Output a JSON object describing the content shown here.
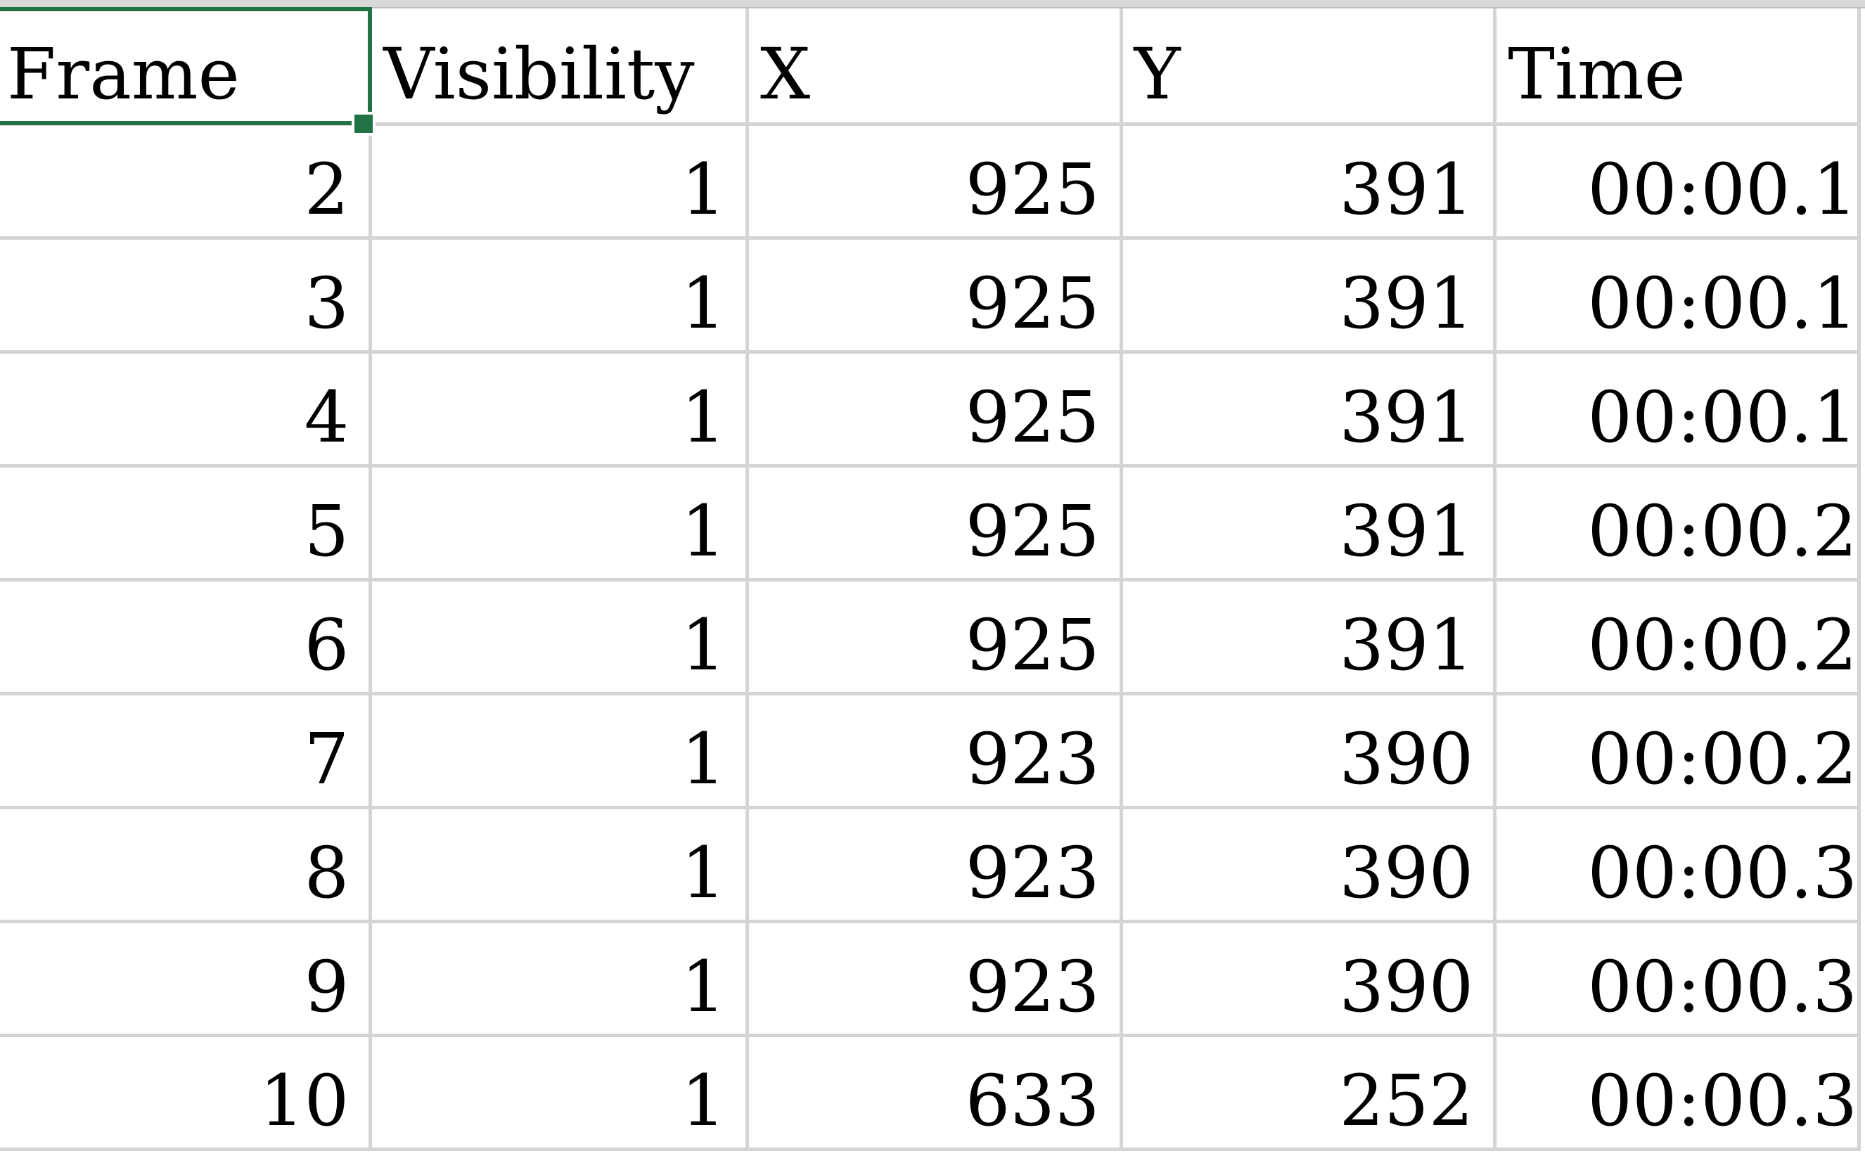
{
  "sheet": {
    "active_cell_value": "Frame",
    "accent_color": "#217346",
    "headers": [
      "Frame",
      "Visibility",
      "X",
      "Y",
      "Time"
    ],
    "rows": [
      [
        "2",
        "1",
        "925",
        "391",
        "00:00.1"
      ],
      [
        "3",
        "1",
        "925",
        "391",
        "00:00.1"
      ],
      [
        "4",
        "1",
        "925",
        "391",
        "00:00.1"
      ],
      [
        "5",
        "1",
        "925",
        "391",
        "00:00.2"
      ],
      [
        "6",
        "1",
        "925",
        "391",
        "00:00.2"
      ],
      [
        "7",
        "1",
        "923",
        "390",
        "00:00.2"
      ],
      [
        "8",
        "1",
        "923",
        "390",
        "00:00.3"
      ],
      [
        "9",
        "1",
        "923",
        "390",
        "00:00.3"
      ],
      [
        "10",
        "1",
        "633",
        "252",
        "00:00.3"
      ]
    ]
  }
}
